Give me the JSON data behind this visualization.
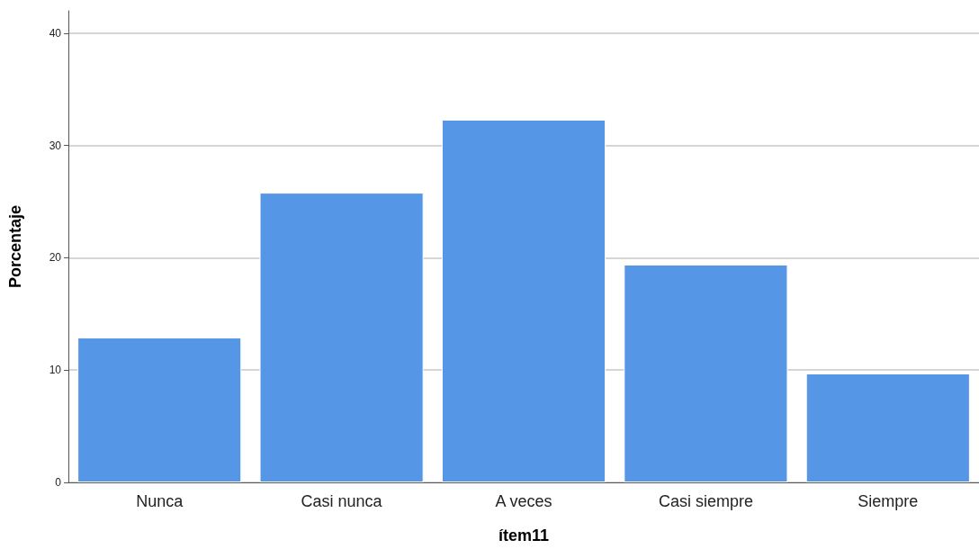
{
  "chart_data": {
    "type": "bar",
    "xlabel": "ítem11",
    "ylabel": "Porcentaje",
    "categories": [
      "Nunca",
      "Casi nunca",
      "A veces",
      "Casi siempre",
      "Siempre"
    ],
    "values": [
      12.9,
      25.8,
      32.3,
      19.4,
      9.7
    ],
    "color": "#5596e6",
    "ylim": [
      0,
      42
    ],
    "yticks": [
      0,
      10,
      20,
      30,
      40
    ],
    "grid": "y"
  }
}
